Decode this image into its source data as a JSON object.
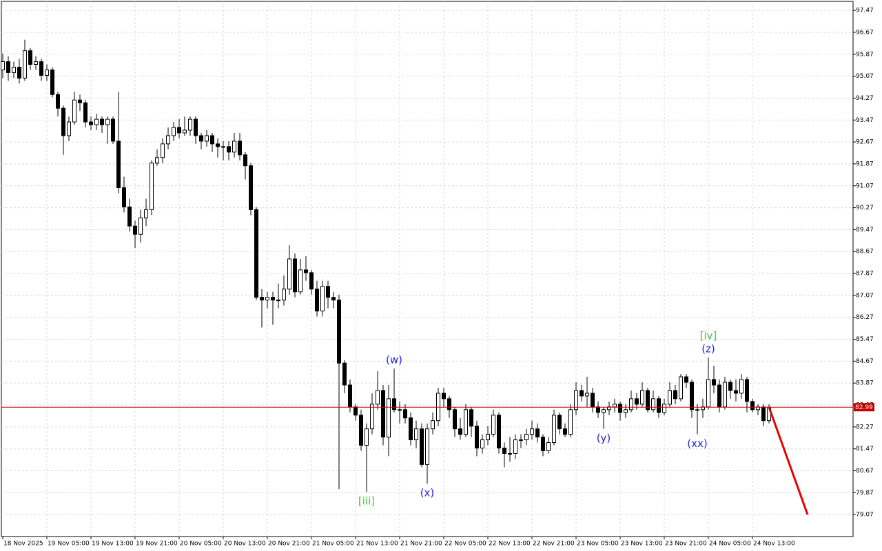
{
  "chart_data": {
    "type": "candlestick",
    "categories": [
      "18 Nov 2025",
      null,
      null,
      null,
      null,
      null,
      null,
      null,
      "19 Nov 05:00",
      null,
      null,
      null,
      null,
      null,
      null,
      null,
      "19 Nov 13:00",
      null,
      null,
      null,
      null,
      null,
      null,
      null,
      "19 Nov 21:00",
      null,
      null,
      null,
      null,
      null,
      null,
      null,
      "20 Nov 05:00",
      null,
      null,
      null,
      null,
      null,
      null,
      null,
      "20 Nov 13:00",
      null,
      null,
      null,
      null,
      null,
      null,
      null,
      "20 Nov 21:00",
      null,
      null,
      null,
      null,
      null,
      null,
      null,
      "21 Nov 05:00",
      null,
      null,
      null,
      null,
      null,
      null,
      null,
      "21 Nov 13:00",
      null,
      null,
      null,
      null,
      null,
      null,
      null,
      "21 Nov 21:00",
      null,
      null,
      null,
      null,
      null,
      null,
      null,
      "22 Nov 05:00",
      null,
      null,
      null,
      null,
      null,
      null,
      null,
      "22 Nov 13:00",
      null,
      null,
      null,
      null,
      null,
      null,
      null,
      "22 Nov 21:00",
      null,
      null,
      null,
      null,
      null,
      null,
      null,
      "23 Nov 05:00",
      null,
      null,
      null,
      null,
      null,
      null,
      null,
      "23 Nov 13:00",
      null,
      null,
      null,
      null,
      null,
      null,
      null,
      "23 Nov 21:00",
      null,
      null,
      null,
      null,
      null,
      null,
      null,
      "24 Nov 05:00",
      null,
      null,
      null,
      null,
      null,
      null,
      null,
      "24 Nov 13:00",
      null,
      null,
      null
    ],
    "candles": [
      [
        95.3,
        95.9,
        95.0,
        95.6
      ],
      [
        95.6,
        95.8,
        94.9,
        95.2
      ],
      [
        95.2,
        95.6,
        95.0,
        95.4
      ],
      [
        95.4,
        95.7,
        94.8,
        95.0
      ],
      [
        95.0,
        96.4,
        94.9,
        96.0
      ],
      [
        96.0,
        96.1,
        95.3,
        95.5
      ],
      [
        95.5,
        95.8,
        95.3,
        95.6
      ],
      [
        95.6,
        95.7,
        94.9,
        95.1
      ],
      [
        95.1,
        95.5,
        94.9,
        95.3
      ],
      [
        95.3,
        95.4,
        94.3,
        94.4
      ],
      [
        94.4,
        94.5,
        93.6,
        93.9
      ],
      [
        93.9,
        94.0,
        92.2,
        92.9
      ],
      [
        92.9,
        93.6,
        92.7,
        93.4
      ],
      [
        93.4,
        94.5,
        93.3,
        94.2
      ],
      [
        94.2,
        94.4,
        93.8,
        94.1
      ],
      [
        94.1,
        94.2,
        93.2,
        93.4
      ],
      [
        93.4,
        93.6,
        93.1,
        93.3
      ],
      [
        93.3,
        93.7,
        93.1,
        93.5
      ],
      [
        93.5,
        93.6,
        93.0,
        93.3
      ],
      [
        93.3,
        93.6,
        92.6,
        93.5
      ],
      [
        93.5,
        93.6,
        92.6,
        92.7
      ],
      [
        92.7,
        94.5,
        90.8,
        91.0
      ],
      [
        91.0,
        91.4,
        90.1,
        90.3
      ],
      [
        90.3,
        90.6,
        89.4,
        89.6
      ],
      [
        89.6,
        89.8,
        88.8,
        89.3
      ],
      [
        89.3,
        90.2,
        89.0,
        89.9
      ],
      [
        89.9,
        90.6,
        89.6,
        90.2
      ],
      [
        90.2,
        92.0,
        90.0,
        91.9
      ],
      [
        91.9,
        92.4,
        91.8,
        92.1
      ],
      [
        92.1,
        92.8,
        91.9,
        92.6
      ],
      [
        92.6,
        93.2,
        92.4,
        92.9
      ],
      [
        92.9,
        93.4,
        92.7,
        93.2
      ],
      [
        93.2,
        93.5,
        92.8,
        93.0
      ],
      [
        93.0,
        93.6,
        92.9,
        93.1
      ],
      [
        93.1,
        93.6,
        92.9,
        93.5
      ],
      [
        93.5,
        93.6,
        92.6,
        92.9
      ],
      [
        92.9,
        93.0,
        92.4,
        92.7
      ],
      [
        92.7,
        93.1,
        92.5,
        92.9
      ],
      [
        92.9,
        93.0,
        92.3,
        92.6
      ],
      [
        92.6,
        92.8,
        92.1,
        92.5
      ],
      [
        92.5,
        92.7,
        92.0,
        92.5
      ],
      [
        92.5,
        92.7,
        92.0,
        92.3
      ],
      [
        92.3,
        93.0,
        92.1,
        92.7
      ],
      [
        92.7,
        93.0,
        92.0,
        92.2
      ],
      [
        92.2,
        92.3,
        91.3,
        91.8
      ],
      [
        91.8,
        91.9,
        90.0,
        90.2
      ],
      [
        90.2,
        90.3,
        86.9,
        87.0
      ],
      [
        87.0,
        87.3,
        85.9,
        86.9
      ],
      [
        86.9,
        87.2,
        86.6,
        87.0
      ],
      [
        87.0,
        87.2,
        86.0,
        86.9
      ],
      [
        86.9,
        87.5,
        86.6,
        86.9
      ],
      [
        86.9,
        87.8,
        86.7,
        87.3
      ],
      [
        87.3,
        88.9,
        87.1,
        88.4
      ],
      [
        88.4,
        88.6,
        87.0,
        87.2
      ],
      [
        87.2,
        88.4,
        87.1,
        88.0
      ],
      [
        88.0,
        88.5,
        87.6,
        87.9
      ],
      [
        87.9,
        88.0,
        87.1,
        87.3
      ],
      [
        87.3,
        87.6,
        86.3,
        86.5
      ],
      [
        86.5,
        87.6,
        86.3,
        87.4
      ],
      [
        87.4,
        87.6,
        86.6,
        87.0
      ],
      [
        87.0,
        87.2,
        86.6,
        86.9
      ],
      [
        86.9,
        87.1,
        80.0,
        84.6
      ],
      [
        84.6,
        84.7,
        83.5,
        83.8
      ],
      [
        83.8,
        84.0,
        82.8,
        83.0
      ],
      [
        83.0,
        83.1,
        82.5,
        82.7
      ],
      [
        82.7,
        82.9,
        81.4,
        81.6
      ],
      [
        81.6,
        82.4,
        79.9,
        82.2
      ],
      [
        82.2,
        83.5,
        82.0,
        83.1
      ],
      [
        83.1,
        84.3,
        82.9,
        83.6
      ],
      [
        83.6,
        83.8,
        81.6,
        81.9
      ],
      [
        81.9,
        83.8,
        81.2,
        83.3
      ],
      [
        83.3,
        84.4,
        82.8,
        82.9
      ],
      [
        82.9,
        83.2,
        82.4,
        82.9
      ],
      [
        82.9,
        83.1,
        82.4,
        82.6
      ],
      [
        82.6,
        82.8,
        81.6,
        81.8
      ],
      [
        81.8,
        82.5,
        81.5,
        82.2
      ],
      [
        82.2,
        82.4,
        80.8,
        80.9
      ],
      [
        80.9,
        82.4,
        80.2,
        82.2
      ],
      [
        82.2,
        82.8,
        82.0,
        82.5
      ],
      [
        82.5,
        83.7,
        82.3,
        83.5
      ],
      [
        83.5,
        83.7,
        83.0,
        83.3
      ],
      [
        83.3,
        83.4,
        82.6,
        82.9
      ],
      [
        82.9,
        83.0,
        81.9,
        82.2
      ],
      [
        82.2,
        82.6,
        81.8,
        82.0
      ],
      [
        82.0,
        83.1,
        81.9,
        82.9
      ],
      [
        82.9,
        83.0,
        81.9,
        82.3
      ],
      [
        82.3,
        82.5,
        81.2,
        81.5
      ],
      [
        81.5,
        82.0,
        81.3,
        81.8
      ],
      [
        81.8,
        82.3,
        81.6,
        82.0
      ],
      [
        82.0,
        82.9,
        81.9,
        82.7
      ],
      [
        82.7,
        82.8,
        81.3,
        81.5
      ],
      [
        81.5,
        81.7,
        80.8,
        81.3
      ],
      [
        81.3,
        81.9,
        81.0,
        81.3
      ],
      [
        81.3,
        82.0,
        81.1,
        81.8
      ],
      [
        81.8,
        82.0,
        81.5,
        81.8
      ],
      [
        81.8,
        82.2,
        81.6,
        82.0
      ],
      [
        82.0,
        82.5,
        81.8,
        82.2
      ],
      [
        82.2,
        82.4,
        81.7,
        81.9
      ],
      [
        81.9,
        82.0,
        81.2,
        81.4
      ],
      [
        81.4,
        81.9,
        81.3,
        81.7
      ],
      [
        81.7,
        82.9,
        81.6,
        82.7
      ],
      [
        82.7,
        82.8,
        82.0,
        82.2
      ],
      [
        82.2,
        82.4,
        81.9,
        82.0
      ],
      [
        82.0,
        83.1,
        81.9,
        82.9
      ],
      [
        82.9,
        83.9,
        82.7,
        83.6
      ],
      [
        83.6,
        83.8,
        83.2,
        83.4
      ],
      [
        83.4,
        84.1,
        83.0,
        83.5
      ],
      [
        83.5,
        83.7,
        82.8,
        83.0
      ],
      [
        83.0,
        83.2,
        82.6,
        82.8
      ],
      [
        82.8,
        83.0,
        82.2,
        82.9
      ],
      [
        82.9,
        83.2,
        82.7,
        83.0
      ],
      [
        83.0,
        83.3,
        82.8,
        83.1
      ],
      [
        83.1,
        83.2,
        82.5,
        82.8
      ],
      [
        82.8,
        83.1,
        82.6,
        82.9
      ],
      [
        82.9,
        83.6,
        82.8,
        83.3
      ],
      [
        83.3,
        83.5,
        82.9,
        83.1
      ],
      [
        83.1,
        83.9,
        83.0,
        83.6
      ],
      [
        83.6,
        83.7,
        82.8,
        82.9
      ],
      [
        82.9,
        83.6,
        82.8,
        83.3
      ],
      [
        83.3,
        83.4,
        82.6,
        82.8
      ],
      [
        82.8,
        83.3,
        82.7,
        83.1
      ],
      [
        83.1,
        83.9,
        83.0,
        83.6
      ],
      [
        83.6,
        83.8,
        83.1,
        83.3
      ],
      [
        83.3,
        84.2,
        83.2,
        84.1
      ],
      [
        84.1,
        84.2,
        83.7,
        83.9
      ],
      [
        83.9,
        84.0,
        82.6,
        82.9
      ],
      [
        82.9,
        83.1,
        82.0,
        82.9
      ],
      [
        82.9,
        83.3,
        82.6,
        83.0
      ],
      [
        83.0,
        84.8,
        82.9,
        84.0
      ],
      [
        84.0,
        84.5,
        83.5,
        83.8
      ],
      [
        83.8,
        84.0,
        82.8,
        83.0
      ],
      [
        83.0,
        84.1,
        82.9,
        83.9
      ],
      [
        83.9,
        84.0,
        83.3,
        83.6
      ],
      [
        83.6,
        84.0,
        83.2,
        83.5
      ],
      [
        83.5,
        84.2,
        83.3,
        84.0
      ],
      [
        84.0,
        84.1,
        82.8,
        83.2
      ],
      [
        83.2,
        83.3,
        82.8,
        82.9
      ],
      [
        82.9,
        83.1,
        82.7,
        83.0
      ],
      [
        83.0,
        83.1,
        82.3,
        82.5
      ],
      [
        82.5,
        83.1,
        82.4,
        82.99
      ]
    ],
    "ylim": [
      78.27,
      97.8
    ],
    "yticks": [
      97.47,
      96.67,
      95.87,
      95.07,
      94.27,
      93.47,
      92.67,
      91.87,
      91.07,
      90.27,
      89.47,
      88.67,
      87.87,
      87.07,
      86.27,
      85.47,
      84.67,
      83.87,
      83.07,
      82.27,
      81.47,
      80.67,
      79.87,
      79.07
    ],
    "grid": true,
    "price_line": {
      "value": 82.99,
      "color": "#c00000"
    },
    "forecast": {
      "x": [
        139,
        146
      ],
      "values": [
        82.99,
        79.07
      ],
      "color": "#e60000"
    },
    "annotations": [
      {
        "text": "(w)",
        "color": "#1f1fe0",
        "index": 71,
        "side": "above"
      },
      {
        "text": "[iii]",
        "color": "#3cc83c",
        "index": 66,
        "side": "below"
      },
      {
        "text": "(x)",
        "color": "#1f1fe0",
        "index": 77,
        "side": "below"
      },
      {
        "text": "(y)",
        "color": "#1f1fe0",
        "index": 109,
        "side": "below"
      },
      {
        "text": "(xx)",
        "color": "#1f1fe0",
        "index": 126,
        "side": "below"
      },
      {
        "text": "(z)",
        "color": "#1f1fe0",
        "index": 128,
        "side": "above"
      },
      {
        "text": "[iv]",
        "color": "#3cc83c",
        "index": 128,
        "side": "above"
      }
    ]
  }
}
